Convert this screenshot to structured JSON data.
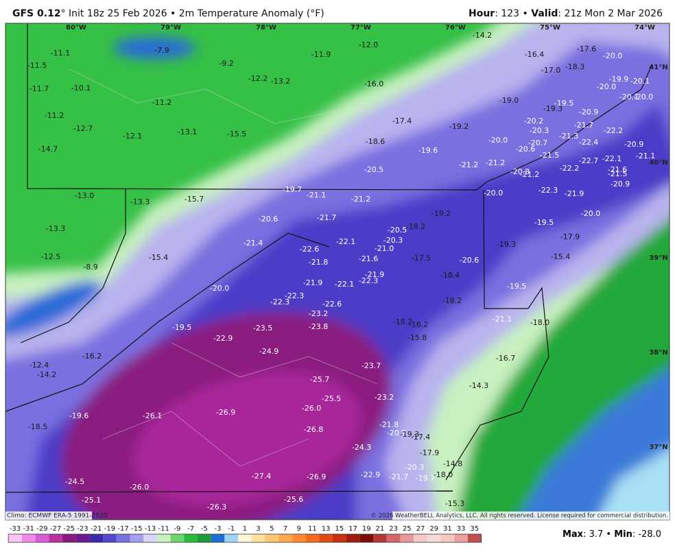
{
  "header": {
    "model": "GFS 0.12",
    "title": "° Init 18z 25 Feb 2026 • 2m Temperature Anomaly (°F)",
    "hour_label": "Hour",
    "hour": ": 123 • ",
    "valid_label": "Valid",
    "valid": ": 21z Mon 2 Mar 2026"
  },
  "map": {
    "longitudes": [
      "80°W",
      "79°W",
      "78°W",
      "77°W",
      "76°W",
      "75°W",
      "74°W"
    ],
    "latitudes": [
      "41°N",
      "40°N",
      "39°N",
      "38°N",
      "37°N"
    ],
    "values": [
      "-11.1",
      "-11.5",
      "-7.9",
      "-9.2",
      "-11.9",
      "-12.0",
      "-14.2",
      "-16.4",
      "-17.6",
      "-20.0",
      "-17.0",
      "-18.3",
      "-11.7",
      "-10.1",
      "-12.2",
      "-13.2",
      "-16.0",
      "-19.9",
      "-20.1",
      "-20.0",
      "-11.2",
      "-19.0",
      "-19.5",
      "-19.3",
      "-20.9",
      "-11.2",
      "-12.7",
      "-13.1",
      "-15.5",
      "-17.4",
      "-19.2",
      "-20.2",
      "-21.7",
      "-22.2",
      "-12.1",
      "-18.6",
      "-20.0",
      "-20.3",
      "-21.3",
      "-22.4",
      "-20.9",
      "-14.7",
      "-19.6",
      "-20.7",
      "-20.6",
      "-21.5",
      "-22.7",
      "-22.1",
      "-20.5",
      "-21.2",
      "-21.2",
      "-20.8",
      "-21.2",
      "-22.2",
      "-21.6",
      "-21.5",
      "-19.7",
      "-21.1",
      "-22.3",
      "-21.9",
      "-20.0",
      "-20.9",
      "-13.0",
      "-13.3",
      "-15.7",
      "-21.2",
      "-19.2",
      "-20.0",
      "-20.6",
      "-21.7",
      "-20.5",
      "-18.2",
      "-19.5",
      "-13.3",
      "-22.1",
      "-20.3",
      "-17.9",
      "-21.4",
      "-22.6",
      "-21.0",
      "-19.3",
      "-12.5",
      "-15.4",
      "-21.8",
      "-21.6",
      "-17.5",
      "-20.6",
      "-15.4",
      "-8.9",
      "-21.9",
      "-18.4",
      "-21.9",
      "-22.1",
      "-22.3",
      "-19.5",
      "-20.0",
      "-22.3",
      "-22.3",
      "-22.6",
      "-18.2",
      "-23.2",
      "-21.1",
      "-18.2",
      "-16.2",
      "-18.0",
      "-19.5",
      "-23.5",
      "-23.8",
      "-15.8",
      "-22.9",
      "-24.9",
      "-16.7",
      "-16.2",
      "-12.4",
      "-23.7",
      "-14.2",
      "-25.7",
      "-14.3",
      "-25.5",
      "-23.2",
      "-26.0",
      "-19.6",
      "-26.1",
      "-26.9",
      "-18.5",
      "-21.8",
      "-26.8",
      "-20.7",
      "-19.3",
      "-17.4",
      "-24.3",
      "-17.9",
      "-14.8",
      "-20.3",
      "-22.9",
      "-21.7",
      "-19.7",
      "-18.0",
      "-27.4",
      "-26.9",
      "-24.5",
      "-26.0",
      "-25.1",
      "-25.6",
      "-26.3",
      "-15.3",
      "-21.1",
      "-20.1",
      "-20.0"
    ]
  },
  "footer": {
    "climo": "Climo: ECMWF ERA-5 1991-2020",
    "copyright": "© 2026 WeatherBELL Analytics, LLC. All rights reserved. License required for commercial distribution.",
    "max_label": "Max",
    "max": ": 3.7 • ",
    "min_label": "Min",
    "min": ": -28.0"
  },
  "colorbar": {
    "ticks": [
      -33,
      -31,
      -29,
      -27,
      -25,
      -23,
      -21,
      -19,
      -17,
      -15,
      -13,
      -11,
      -9,
      -7,
      -5,
      -3,
      -1,
      1,
      3,
      5,
      7,
      9,
      11,
      13,
      15,
      17,
      19,
      21,
      23,
      25,
      27,
      29,
      31,
      33,
      35
    ],
    "colors": [
      "#fbc4f5",
      "#f08ae8",
      "#d95bd6",
      "#b8339f",
      "#8a1a7f",
      "#6a1a8c",
      "#3c2aa8",
      "#5647cf",
      "#7a70e0",
      "#a49eec",
      "#d8d6f6",
      "#c8f0c0",
      "#6ed66e",
      "#2db83a",
      "#1a9c3a",
      "#1f6fd0",
      "#9fd4f5",
      "#fff6d8",
      "#ffe1a0",
      "#ffc870",
      "#ffaa50",
      "#ff8a30",
      "#f26a20",
      "#e04a14",
      "#c83010",
      "#a01c0c",
      "#7a100a",
      "#b03a3a",
      "#d06868",
      "#e89a9a",
      "#f5c8c8",
      "#f3dcd8",
      "#f6c8c0",
      "#e8a0a0",
      "#c05050"
    ]
  }
}
